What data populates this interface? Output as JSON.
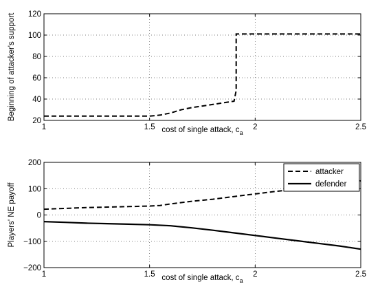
{
  "chart_data": [
    {
      "type": "line",
      "xlabel": "cost of single attack, c",
      "xlabel_sub": "a",
      "ylabel": "Beginning of attacker's support",
      "xlim": [
        1,
        2.5
      ],
      "ylim": [
        20,
        120
      ],
      "xticks": [
        "1",
        "1.5",
        "2",
        "2.5"
      ],
      "yticks": [
        "20",
        "40",
        "60",
        "80",
        "100",
        "120"
      ],
      "xtick_values": [
        1,
        1.5,
        2,
        2.5
      ],
      "ytick_values": [
        20,
        40,
        60,
        80,
        100,
        120
      ],
      "grid": true,
      "series": [
        {
          "style": "dashed",
          "x": [
            1.0,
            1.2,
            1.4,
            1.5,
            1.55,
            1.6,
            1.65,
            1.7,
            1.75,
            1.8,
            1.85,
            1.9,
            1.9,
            1.91,
            1.91,
            2.0,
            2.2,
            2.5
          ],
          "y": [
            24,
            24,
            24,
            24,
            25,
            27,
            30,
            32,
            33.5,
            35,
            36.5,
            38,
            38,
            48,
            101,
            101,
            101,
            101
          ]
        }
      ]
    },
    {
      "type": "line",
      "xlabel": "cost of single attack, c",
      "xlabel_sub": "a",
      "ylabel": "Players' NE payoff",
      "xlim": [
        1,
        2.5
      ],
      "ylim": [
        -200,
        200
      ],
      "xticks": [
        "1",
        "1.5",
        "2",
        "2.5"
      ],
      "yticks": [
        "−200",
        "−100",
        "0",
        "100",
        "200"
      ],
      "xtick_values": [
        1,
        1.5,
        2,
        2.5
      ],
      "ytick_values": [
        -200,
        -100,
        0,
        100,
        200
      ],
      "grid": true,
      "legend_position": "top-right",
      "series": [
        {
          "name": "attacker",
          "style": "dashed",
          "x": [
            1.0,
            1.1,
            1.2,
            1.3,
            1.4,
            1.5,
            1.55,
            1.6,
            1.7,
            1.8,
            1.9,
            2.0,
            2.1,
            2.2,
            2.3,
            2.4,
            2.45,
            2.5
          ],
          "y": [
            22,
            25,
            28,
            30,
            32,
            34,
            36,
            42,
            52,
            60,
            70,
            80,
            90,
            98,
            108,
            116,
            122,
            130
          ]
        },
        {
          "name": "defender",
          "style": "solid",
          "x": [
            1.0,
            1.1,
            1.2,
            1.3,
            1.4,
            1.5,
            1.6,
            1.7,
            1.8,
            1.9,
            2.0,
            2.1,
            2.2,
            2.3,
            2.4,
            2.5
          ],
          "y": [
            -25,
            -28,
            -31,
            -33,
            -35,
            -37,
            -41,
            -49,
            -58,
            -68,
            -78,
            -88,
            -98,
            -108,
            -118,
            -130
          ]
        }
      ]
    }
  ]
}
